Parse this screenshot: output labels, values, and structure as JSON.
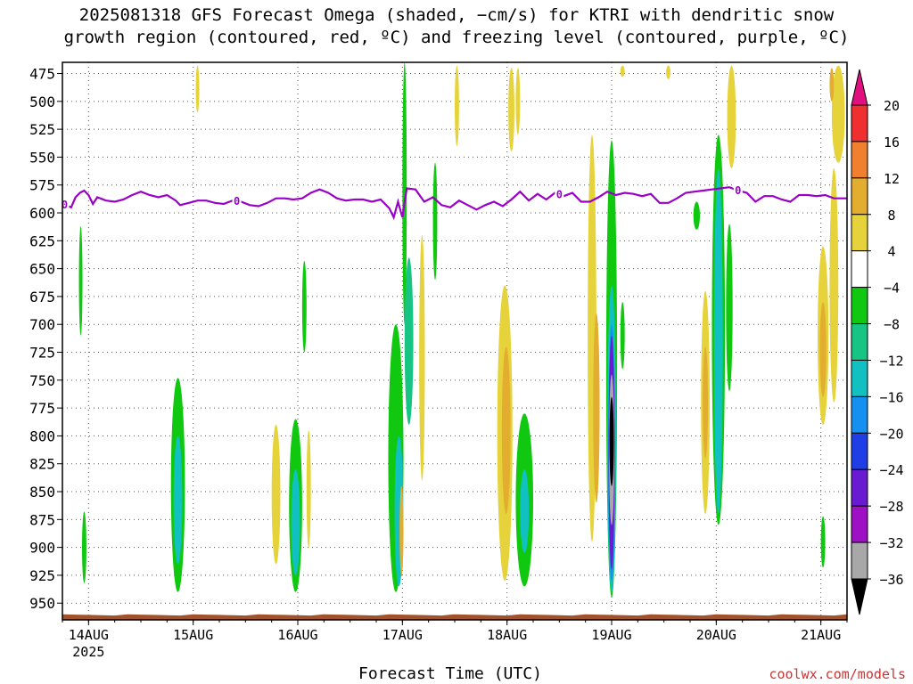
{
  "title": {
    "line1": "2025081318 GFS Forecast Omega (shaded, −cm/s) for KTRI with dendritic snow",
    "line2": "growth region (contoured, red, ºC) and freezing level (contoured, purple, ºC)"
  },
  "credit": "coolwx.com/models",
  "chart_data": {
    "type": "heatmap",
    "title": "2025081318 GFS Forecast Omega (shaded, −cm/s) for KTRI with dendritic snow growth region (contoured, red, ºC) and freezing level (contoured, purple, ºC)",
    "xlabel": "Forecast Time (UTC)",
    "ylabel": "",
    "x_range_hours_since_2025-08-13T18Z": [
      0,
      180
    ],
    "x_ticks": [
      {
        "label": "14AUG",
        "hour": 6,
        "sub": "2025"
      },
      {
        "label": "15AUG",
        "hour": 30
      },
      {
        "label": "16AUG",
        "hour": 54
      },
      {
        "label": "17AUG",
        "hour": 78
      },
      {
        "label": "18AUG",
        "hour": 102
      },
      {
        "label": "19AUG",
        "hour": 126
      },
      {
        "label": "20AUG",
        "hour": 150
      },
      {
        "label": "21AUG",
        "hour": 174
      }
    ],
    "y_range_hPa": [
      465,
      965
    ],
    "y_ticks": [
      475,
      500,
      525,
      550,
      575,
      600,
      625,
      650,
      675,
      700,
      725,
      750,
      775,
      800,
      825,
      850,
      875,
      900,
      925,
      950
    ],
    "grid": "dotted",
    "colorbar": {
      "labels": [
        "20",
        "16",
        "12",
        "8",
        "4",
        "−4",
        "−8",
        "−12",
        "−16",
        "−20",
        "−24",
        "−28",
        "−32",
        "−36"
      ],
      "bins": [
        {
          "range": "> 20",
          "color": "#e0117f"
        },
        {
          "range": "16 to 20",
          "color": "#f03030"
        },
        {
          "range": "12 to 16",
          "color": "#f07f30"
        },
        {
          "range": "8 to 12",
          "color": "#e3ae30"
        },
        {
          "range": "4 to 8",
          "color": "#e6d33b"
        },
        {
          "range": "-4 to 4",
          "color": "#ffffff"
        },
        {
          "range": "-8 to -4",
          "color": "#0fc80f"
        },
        {
          "range": "-12 to -8",
          "color": "#18c483"
        },
        {
          "range": "-16 to -12",
          "color": "#11c1c1"
        },
        {
          "range": "-20 to -16",
          "color": "#1590f0"
        },
        {
          "range": "-24 to -20",
          "color": "#1f3ee6"
        },
        {
          "range": "-28 to -24",
          "color": "#6a1bd2"
        },
        {
          "range": "-32 to -28",
          "color": "#9d10c3"
        },
        {
          "range": "-36 to -32",
          "color": "#a8a8a8"
        },
        {
          "range": "< -36",
          "color": "#000000"
        }
      ]
    },
    "freezing_level": {
      "label": "0",
      "color": "#9b00c8",
      "points": [
        [
          0,
          592
        ],
        [
          2,
          595
        ],
        [
          3,
          586
        ],
        [
          4,
          582
        ],
        [
          5,
          580
        ],
        [
          6,
          584
        ],
        [
          7,
          592
        ],
        [
          8,
          586
        ],
        [
          10,
          589
        ],
        [
          12,
          590
        ],
        [
          14,
          588
        ],
        [
          16,
          584
        ],
        [
          18,
          581
        ],
        [
          20,
          584
        ],
        [
          22,
          586
        ],
        [
          24,
          584
        ],
        [
          26,
          589
        ],
        [
          27,
          593
        ],
        [
          29,
          591
        ],
        [
          31,
          589
        ],
        [
          33,
          589
        ],
        [
          35,
          591
        ],
        [
          37,
          592
        ],
        [
          39,
          589
        ],
        [
          41,
          590
        ],
        [
          43,
          593
        ],
        [
          45,
          594
        ],
        [
          47,
          591
        ],
        [
          49,
          587
        ],
        [
          51,
          587
        ],
        [
          53,
          588
        ],
        [
          55,
          587
        ],
        [
          57,
          582
        ],
        [
          59,
          579
        ],
        [
          61,
          582
        ],
        [
          63,
          587
        ],
        [
          65,
          589
        ],
        [
          67,
          588
        ],
        [
          69,
          588
        ],
        [
          71,
          590
        ],
        [
          73,
          588
        ],
        [
          75,
          596
        ],
        [
          76,
          604
        ],
        [
          77,
          590
        ],
        [
          78,
          604
        ],
        [
          79,
          578
        ],
        [
          81,
          579
        ],
        [
          83,
          590
        ],
        [
          85,
          586
        ],
        [
          87,
          593
        ],
        [
          89,
          595
        ],
        [
          91,
          589
        ],
        [
          93,
          593
        ],
        [
          95,
          597
        ],
        [
          97,
          593
        ],
        [
          99,
          590
        ],
        [
          101,
          594
        ],
        [
          103,
          588
        ],
        [
          105,
          581
        ],
        [
          107,
          589
        ],
        [
          109,
          583
        ],
        [
          111,
          588
        ],
        [
          113,
          582
        ],
        [
          115,
          585
        ],
        [
          117,
          582
        ],
        [
          119,
          590
        ],
        [
          121,
          590
        ],
        [
          123,
          586
        ],
        [
          125,
          581
        ],
        [
          127,
          584
        ],
        [
          129,
          582
        ],
        [
          131,
          583
        ],
        [
          133,
          585
        ],
        [
          135,
          583
        ],
        [
          137,
          591
        ],
        [
          139,
          591
        ],
        [
          141,
          587
        ],
        [
          143,
          582
        ],
        [
          145,
          581
        ],
        [
          147,
          580
        ],
        [
          149,
          579
        ],
        [
          151,
          578
        ],
        [
          153,
          577
        ],
        [
          155,
          580
        ],
        [
          157,
          582
        ],
        [
          159,
          590
        ],
        [
          161,
          585
        ],
        [
          163,
          585
        ],
        [
          165,
          588
        ],
        [
          167,
          590
        ],
        [
          169,
          584
        ],
        [
          171,
          584
        ],
        [
          173,
          585
        ],
        [
          175,
          584
        ],
        [
          177,
          587
        ],
        [
          179,
          587
        ],
        [
          180,
          587
        ]
      ]
    },
    "freezing_level_label_hours": [
      0.5,
      40,
      114,
      155
    ],
    "omega_blobs": [
      {
        "hour": 4.2,
        "p_top": 612,
        "p_bot": 710,
        "width_h": 0.8,
        "value": -6
      },
      {
        "hour": 5.0,
        "p_top": 868,
        "p_bot": 932,
        "width_h": 1.0,
        "value": -6
      },
      {
        "hour": 26.5,
        "p_top": 748,
        "p_bot": 940,
        "width_h": 3.2,
        "value": -6
      },
      {
        "hour": 26.5,
        "p_top": 800,
        "p_bot": 915,
        "width_h": 2.0,
        "value": -12
      },
      {
        "hour": 26.8,
        "p_top": 830,
        "p_bot": 900,
        "width_h": 1.0,
        "value": -14
      },
      {
        "hour": 49,
        "p_top": 790,
        "p_bot": 915,
        "width_h": 2.0,
        "value": 6
      },
      {
        "hour": 53.5,
        "p_top": 785,
        "p_bot": 940,
        "width_h": 3.0,
        "value": -6
      },
      {
        "hour": 53.5,
        "p_top": 830,
        "p_bot": 925,
        "width_h": 2.0,
        "value": -12
      },
      {
        "hour": 56.5,
        "p_top": 795,
        "p_bot": 900,
        "width_h": 1.0,
        "value": 6
      },
      {
        "hour": 55.5,
        "p_top": 643,
        "p_bot": 725,
        "width_h": 1.0,
        "value": -6
      },
      {
        "hour": 76.5,
        "p_top": 700,
        "p_bot": 940,
        "width_h": 3.5,
        "value": -6
      },
      {
        "hour": 77.2,
        "p_top": 800,
        "p_bot": 935,
        "width_h": 2.0,
        "value": -12
      },
      {
        "hour": 77.8,
        "p_top": 845,
        "p_bot": 925,
        "width_h": 0.9,
        "value": 12
      },
      {
        "hour": 78.5,
        "p_top": 465,
        "p_bot": 700,
        "width_h": 1.0,
        "value": -6
      },
      {
        "hour": 79.5,
        "p_top": 640,
        "p_bot": 790,
        "width_h": 2.0,
        "value": -10
      },
      {
        "hour": 82.5,
        "p_top": 620,
        "p_bot": 840,
        "width_h": 1.3,
        "value": 6
      },
      {
        "hour": 85.5,
        "p_top": 555,
        "p_bot": 660,
        "width_h": 1.0,
        "value": -6
      },
      {
        "hour": 101.5,
        "p_top": 665,
        "p_bot": 930,
        "width_h": 3.5,
        "value": 6
      },
      {
        "hour": 101.8,
        "p_top": 720,
        "p_bot": 870,
        "width_h": 2.0,
        "value": 10
      },
      {
        "hour": 106,
        "p_top": 780,
        "p_bot": 935,
        "width_h": 4.0,
        "value": -6
      },
      {
        "hour": 106,
        "p_top": 830,
        "p_bot": 905,
        "width_h": 2.0,
        "value": -12
      },
      {
        "hour": 121.5,
        "p_top": 530,
        "p_bot": 895,
        "width_h": 2.0,
        "value": 6
      },
      {
        "hour": 122.5,
        "p_top": 690,
        "p_bot": 860,
        "width_h": 1.5,
        "value": 10
      },
      {
        "hour": 126,
        "p_top": 535,
        "p_bot": 945,
        "width_h": 2.5,
        "value": -6
      },
      {
        "hour": 126,
        "p_top": 665,
        "p_bot": 940,
        "width_h": 2.0,
        "value": -14
      },
      {
        "hour": 126,
        "p_top": 700,
        "p_bot": 930,
        "width_h": 1.6,
        "value": -18
      },
      {
        "hour": 126,
        "p_top": 710,
        "p_bot": 920,
        "width_h": 1.4,
        "value": -26
      },
      {
        "hour": 126,
        "p_top": 745,
        "p_bot": 880,
        "width_h": 1.2,
        "value": -34
      },
      {
        "hour": 126,
        "p_top": 765,
        "p_bot": 845,
        "width_h": 1.0,
        "value": -40
      },
      {
        "hour": 128.5,
        "p_top": 680,
        "p_bot": 740,
        "width_h": 1.0,
        "value": -6
      },
      {
        "hour": 147.5,
        "p_top": 670,
        "p_bot": 870,
        "width_h": 2.0,
        "value": 6
      },
      {
        "hour": 147.5,
        "p_top": 720,
        "p_bot": 820,
        "width_h": 1.2,
        "value": 10
      },
      {
        "hour": 150.5,
        "p_top": 530,
        "p_bot": 880,
        "width_h": 3.0,
        "value": -6
      },
      {
        "hour": 150.5,
        "p_top": 560,
        "p_bot": 870,
        "width_h": 2.0,
        "value": -14
      },
      {
        "hour": 153.5,
        "p_top": 468,
        "p_bot": 560,
        "width_h": 2.0,
        "value": 6
      },
      {
        "hour": 153,
        "p_top": 610,
        "p_bot": 760,
        "width_h": 1.5,
        "value": -6
      },
      {
        "hour": 145.5,
        "p_top": 590,
        "p_bot": 615,
        "width_h": 1.5,
        "value": -6
      },
      {
        "hour": 174.5,
        "p_top": 630,
        "p_bot": 790,
        "width_h": 2.5,
        "value": 6
      },
      {
        "hour": 174.5,
        "p_top": 680,
        "p_bot": 765,
        "width_h": 1.5,
        "value": 10
      },
      {
        "hour": 177,
        "p_top": 560,
        "p_bot": 770,
        "width_h": 2.0,
        "value": 6
      },
      {
        "hour": 174.5,
        "p_top": 872,
        "p_bot": 918,
        "width_h": 1.0,
        "value": -6
      },
      {
        "hour": 178,
        "p_top": 468,
        "p_bot": 555,
        "width_h": 3.0,
        "value": 6
      },
      {
        "hour": 176.5,
        "p_top": 470,
        "p_bot": 500,
        "width_h": 1.0,
        "value": 10
      },
      {
        "hour": 128.5,
        "p_top": 468,
        "p_bot": 478,
        "width_h": 1.0,
        "value": 6
      },
      {
        "hour": 139,
        "p_top": 468,
        "p_bot": 480,
        "width_h": 1.0,
        "value": 6
      },
      {
        "hour": 103,
        "p_top": 470,
        "p_bot": 545,
        "width_h": 1.4,
        "value": 6
      },
      {
        "hour": 104.5,
        "p_top": 470,
        "p_bot": 530,
        "width_h": 1.0,
        "value": 6
      },
      {
        "hour": 90.5,
        "p_top": 468,
        "p_bot": 540,
        "width_h": 1.0,
        "value": 6
      },
      {
        "hour": 31,
        "p_top": 468,
        "p_bot": 510,
        "width_h": 0.8,
        "value": 6
      }
    ],
    "terrain": {
      "color": "#a0522d",
      "pressure_hPa": 960
    }
  }
}
